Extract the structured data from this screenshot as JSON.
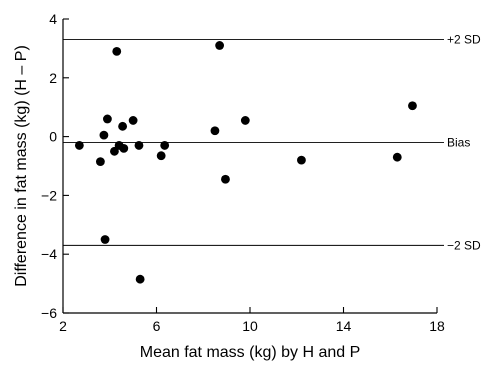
{
  "chart_data": {
    "type": "scatter",
    "title": "",
    "xlabel": "Mean fat mass (kg) by H and P",
    "ylabel": "Difference in fat mass (kg) (H – P)",
    "xlim": [
      2,
      18
    ],
    "ylim": [
      -6,
      4
    ],
    "x_ticks": [
      2,
      6,
      10,
      14,
      18
    ],
    "y_ticks": [
      -6,
      -4,
      -2,
      0,
      2,
      4
    ],
    "x_tick_labels": [
      "2",
      "6",
      "10",
      "14",
      "18"
    ],
    "y_tick_labels": [
      "−6",
      "−4",
      "−2",
      "0",
      "2",
      "4"
    ],
    "grid": false,
    "reference_lines": [
      {
        "label": "+2 SD",
        "y": 3.3
      },
      {
        "label": "Bias",
        "y": -0.2
      },
      {
        "label": "−2 SD",
        "y": -3.7
      }
    ],
    "series": [
      {
        "points": [
          {
            "x": 2.7,
            "y": -0.3
          },
          {
            "x": 3.6,
            "y": -0.85
          },
          {
            "x": 3.75,
            "y": 0.05
          },
          {
            "x": 3.8,
            "y": -3.5
          },
          {
            "x": 3.9,
            "y": 0.6
          },
          {
            "x": 4.2,
            "y": -0.5
          },
          {
            "x": 4.3,
            "y": 2.9
          },
          {
            "x": 4.4,
            "y": -0.3
          },
          {
            "x": 4.55,
            "y": 0.35
          },
          {
            "x": 4.6,
            "y": -0.4
          },
          {
            "x": 5.0,
            "y": 0.55
          },
          {
            "x": 5.25,
            "y": -0.3
          },
          {
            "x": 5.3,
            "y": -4.85
          },
          {
            "x": 6.2,
            "y": -0.65
          },
          {
            "x": 6.35,
            "y": -0.3
          },
          {
            "x": 8.5,
            "y": 0.2
          },
          {
            "x": 8.7,
            "y": 3.1
          },
          {
            "x": 8.95,
            "y": -1.45
          },
          {
            "x": 9.8,
            "y": 0.55
          },
          {
            "x": 12.2,
            "y": -0.8
          },
          {
            "x": 16.3,
            "y": -0.7
          },
          {
            "x": 16.95,
            "y": 1.05
          }
        ]
      }
    ]
  }
}
